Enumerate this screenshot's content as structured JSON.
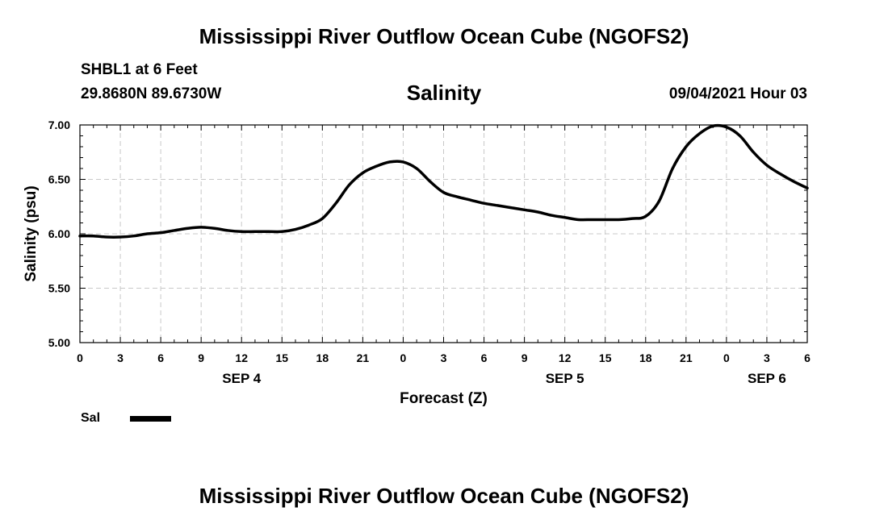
{
  "header": {
    "title_top": "Mississippi River Outflow Ocean Cube (NGOFS2)",
    "title_bottom": "Mississippi River Outflow Ocean Cube (NGOFS2)",
    "station": "SHBL1 at 6 Feet",
    "coords": "29.8680N  89.6730W",
    "datetime": "09/04/2021 Hour 03"
  },
  "legend": {
    "label": "Sal",
    "color": "#000000"
  },
  "chart_data": {
    "type": "line",
    "title": "Salinity",
    "xlabel": "Forecast (Z)",
    "ylabel": "Salinity (psu)",
    "xlim": [
      0,
      54
    ],
    "ylim": [
      5.0,
      7.0
    ],
    "grid": true,
    "x_ticks": [
      0,
      3,
      6,
      9,
      12,
      15,
      18,
      21,
      24,
      27,
      30,
      33,
      36,
      39,
      42,
      45,
      48,
      51,
      54
    ],
    "x_tick_labels": [
      "0",
      "3",
      "6",
      "9",
      "12",
      "15",
      "18",
      "21",
      "0",
      "3",
      "6",
      "9",
      "12",
      "15",
      "18",
      "21",
      "0",
      "3",
      "6"
    ],
    "y_ticks": [
      5.0,
      5.5,
      6.0,
      6.5,
      7.0
    ],
    "y_tick_labels": [
      "5.00",
      "5.50",
      "6.00",
      "6.50",
      "7.00"
    ],
    "date_labels": [
      {
        "x": 12,
        "label": "SEP 4"
      },
      {
        "x": 36,
        "label": "SEP 5"
      },
      {
        "x": 51,
        "label": "SEP 6"
      }
    ],
    "series": [
      {
        "name": "Sal",
        "color": "#000000",
        "x": [
          0,
          1,
          2,
          3,
          4,
          5,
          6,
          7,
          8,
          9,
          10,
          11,
          12,
          13,
          14,
          15,
          16,
          17,
          18,
          19,
          20,
          21,
          22,
          23,
          24,
          25,
          26,
          27,
          28,
          29,
          30,
          31,
          32,
          33,
          34,
          35,
          36,
          37,
          38,
          39,
          40,
          41,
          42,
          43,
          44,
          45,
          46,
          47,
          48,
          49,
          50,
          51,
          52,
          53,
          54
        ],
        "values": [
          5.98,
          5.98,
          5.97,
          5.97,
          5.98,
          6.0,
          6.01,
          6.03,
          6.05,
          6.06,
          6.05,
          6.03,
          6.02,
          6.02,
          6.02,
          6.02,
          6.04,
          6.08,
          6.14,
          6.28,
          6.45,
          6.56,
          6.62,
          6.66,
          6.66,
          6.6,
          6.48,
          6.38,
          6.34,
          6.31,
          6.28,
          6.26,
          6.24,
          6.22,
          6.2,
          6.17,
          6.15,
          6.13,
          6.13,
          6.13,
          6.13,
          6.14,
          6.16,
          6.3,
          6.6,
          6.8,
          6.92,
          6.99,
          6.98,
          6.9,
          6.75,
          6.63,
          6.55,
          6.48,
          6.42
        ]
      }
    ]
  }
}
